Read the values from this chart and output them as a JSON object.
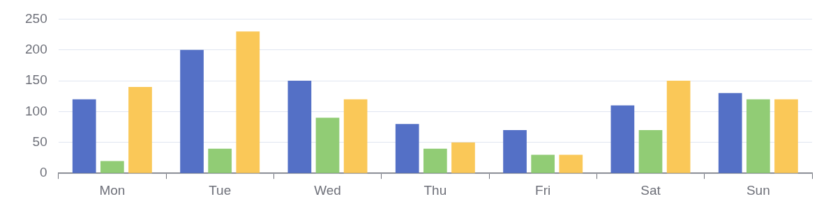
{
  "chart_data": {
    "type": "bar",
    "categories": [
      "Mon",
      "Tue",
      "Wed",
      "Thu",
      "Fri",
      "Sat",
      "Sun"
    ],
    "series": [
      {
        "color": "#5470c6",
        "values": [
          120,
          200,
          150,
          80,
          70,
          110,
          130
        ]
      },
      {
        "color": "#91cc75",
        "values": [
          20,
          40,
          90,
          40,
          30,
          70,
          120
        ]
      },
      {
        "color": "#fac858",
        "values": [
          140,
          230,
          120,
          50,
          30,
          150,
          120
        ]
      }
    ],
    "ylim": [
      0,
      250
    ],
    "yticks": [
      0,
      50,
      100,
      150,
      200,
      250
    ],
    "grid": "y"
  }
}
